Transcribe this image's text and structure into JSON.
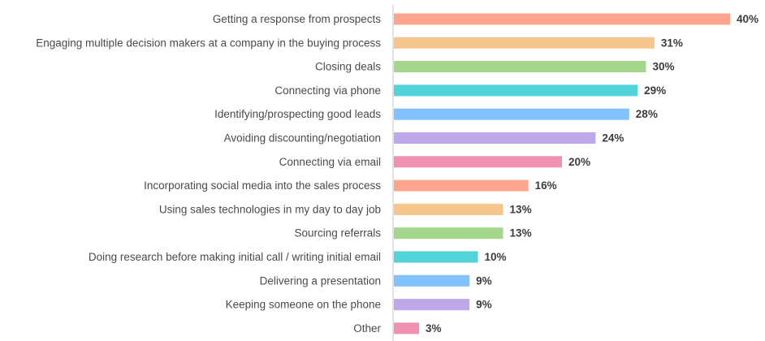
{
  "chart_data": {
    "type": "bar",
    "orientation": "horizontal",
    "categories": [
      "Getting a response from prospects",
      "Engaging multiple decision makers at a company in the buying process",
      "Closing deals",
      "Connecting via phone",
      "Identifying/prospecting good leads",
      "Avoiding discounting/negotiation",
      "Connecting via email",
      "Incorporating social media into the sales process",
      "Using sales technologies in my day to day job",
      "Sourcing referrals",
      "Doing research before making initial call / writing initial email",
      "Delivering a presentation",
      "Keeping someone on the phone",
      "Other"
    ],
    "values": [
      40,
      31,
      30,
      29,
      28,
      24,
      20,
      16,
      13,
      13,
      10,
      9,
      9,
      3
    ],
    "value_labels": [
      "40%",
      "31%",
      "30%",
      "29%",
      "28%",
      "24%",
      "20%",
      "16%",
      "13%",
      "13%",
      "10%",
      "9%",
      "9%",
      "3%"
    ],
    "unit": "%",
    "xlim": [
      0,
      40
    ],
    "grid": false,
    "legend": "none",
    "colors": [
      "#fea58e",
      "#f5c58c",
      "#a4d78b",
      "#51d3d9",
      "#81c1fd",
      "#bea8ea",
      "#f091b1",
      "#fea58e",
      "#f5c58c",
      "#a4d78b",
      "#51d3d9",
      "#81c1fd",
      "#bea8ea",
      "#f091b1"
    ],
    "axis_color": "#d9d9d9"
  }
}
